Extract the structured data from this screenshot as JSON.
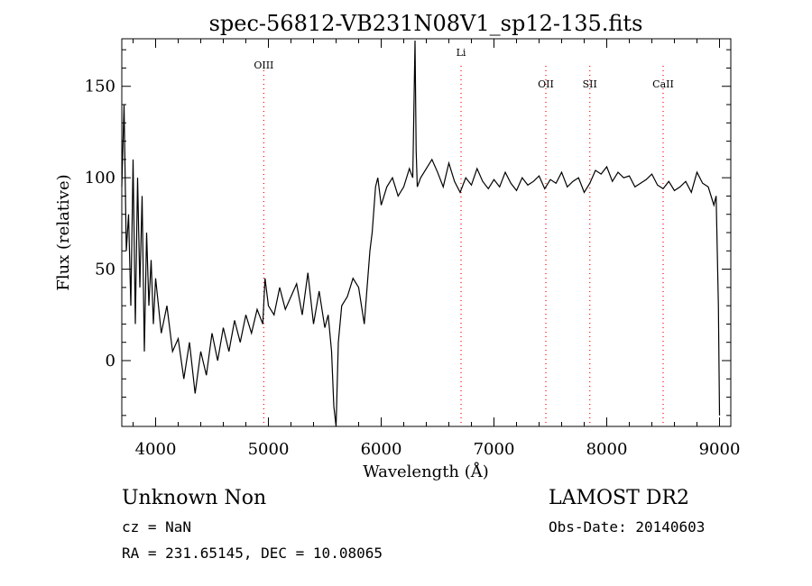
{
  "chart_data": {
    "type": "line",
    "title": "spec-56812-VB231N08V1_sp12-135.fits",
    "xlabel": "Wavelength (Å)",
    "ylabel": "Flux (relative)",
    "xlim": [
      3700,
      9100
    ],
    "ylim": [
      -36,
      176
    ],
    "xticks": [
      4000,
      5000,
      6000,
      7000,
      8000,
      9000
    ],
    "yticks": [
      0,
      50,
      100,
      150
    ],
    "line_color": "#000000",
    "marker_color": "#ff0000",
    "series": [
      {
        "x": [
          3700,
          3720,
          3740,
          3760,
          3780,
          3800,
          3820,
          3840,
          3860,
          3880,
          3900,
          3920,
          3940,
          3960,
          3980,
          4000,
          4050,
          4100,
          4150,
          4200,
          4250,
          4300,
          4350,
          4400,
          4450,
          4500,
          4550,
          4600,
          4650,
          4700,
          4750,
          4800,
          4850,
          4900,
          4950,
          4970,
          5000,
          5050,
          5100,
          5150,
          5200,
          5250,
          5300,
          5350,
          5400,
          5450,
          5500,
          5530,
          5560,
          5580,
          5600,
          5620,
          5650,
          5700,
          5750,
          5800,
          5850,
          5900,
          5920,
          5950,
          5970,
          6000,
          6050,
          6100,
          6150,
          6200,
          6250,
          6280,
          6300,
          6310,
          6320,
          6350,
          6400,
          6450,
          6500,
          6550,
          6600,
          6650,
          6700,
          6750,
          6800,
          6850,
          6900,
          6950,
          7000,
          7050,
          7100,
          7150,
          7200,
          7250,
          7300,
          7350,
          7400,
          7450,
          7500,
          7550,
          7600,
          7650,
          7700,
          7750,
          7800,
          7850,
          7900,
          7950,
          8000,
          8050,
          8100,
          8150,
          8200,
          8250,
          8300,
          8350,
          8400,
          8450,
          8500,
          8550,
          8600,
          8650,
          8700,
          8750,
          8800,
          8850,
          8900,
          8950,
          8970,
          8980,
          8990,
          9000
        ],
        "y": [
          95,
          140,
          60,
          80,
          30,
          110,
          20,
          100,
          40,
          90,
          5,
          70,
          30,
          55,
          20,
          45,
          15,
          30,
          5,
          12,
          -10,
          10,
          -18,
          5,
          -8,
          15,
          0,
          18,
          5,
          22,
          10,
          25,
          15,
          28,
          20,
          45,
          30,
          25,
          40,
          28,
          35,
          42,
          25,
          48,
          20,
          38,
          18,
          25,
          5,
          -25,
          -36,
          10,
          30,
          35,
          45,
          40,
          20,
          60,
          70,
          95,
          100,
          85,
          95,
          100,
          90,
          95,
          105,
          100,
          175,
          115,
          95,
          100,
          105,
          110,
          103,
          95,
          108,
          98,
          92,
          100,
          96,
          105,
          98,
          94,
          99,
          95,
          103,
          97,
          93,
          100,
          96,
          98,
          101,
          94,
          99,
          97,
          103,
          95,
          98,
          100,
          92,
          97,
          104,
          102,
          106,
          98,
          103,
          100,
          101,
          95,
          97,
          99,
          102,
          96,
          94,
          98,
          93,
          95,
          98,
          92,
          103,
          97,
          95,
          85,
          90,
          60,
          30,
          -30
        ]
      }
    ],
    "lines": [
      {
        "label": "OIII",
        "x": 4959
      },
      {
        "label": "Li",
        "x": 6708
      },
      {
        "label": "OII",
        "x": 7460
      },
      {
        "label": "SII",
        "x": 7850
      },
      {
        "label": "CaII",
        "x": 8500
      }
    ],
    "annotations": {
      "left_main": "Unknown    Non",
      "left_cz": "cz = NaN",
      "left_radec": "RA = 231.65145, DEC =  10.08065",
      "right_title": "LAMOST DR2",
      "right_date": "Obs-Date: 20140603"
    }
  }
}
